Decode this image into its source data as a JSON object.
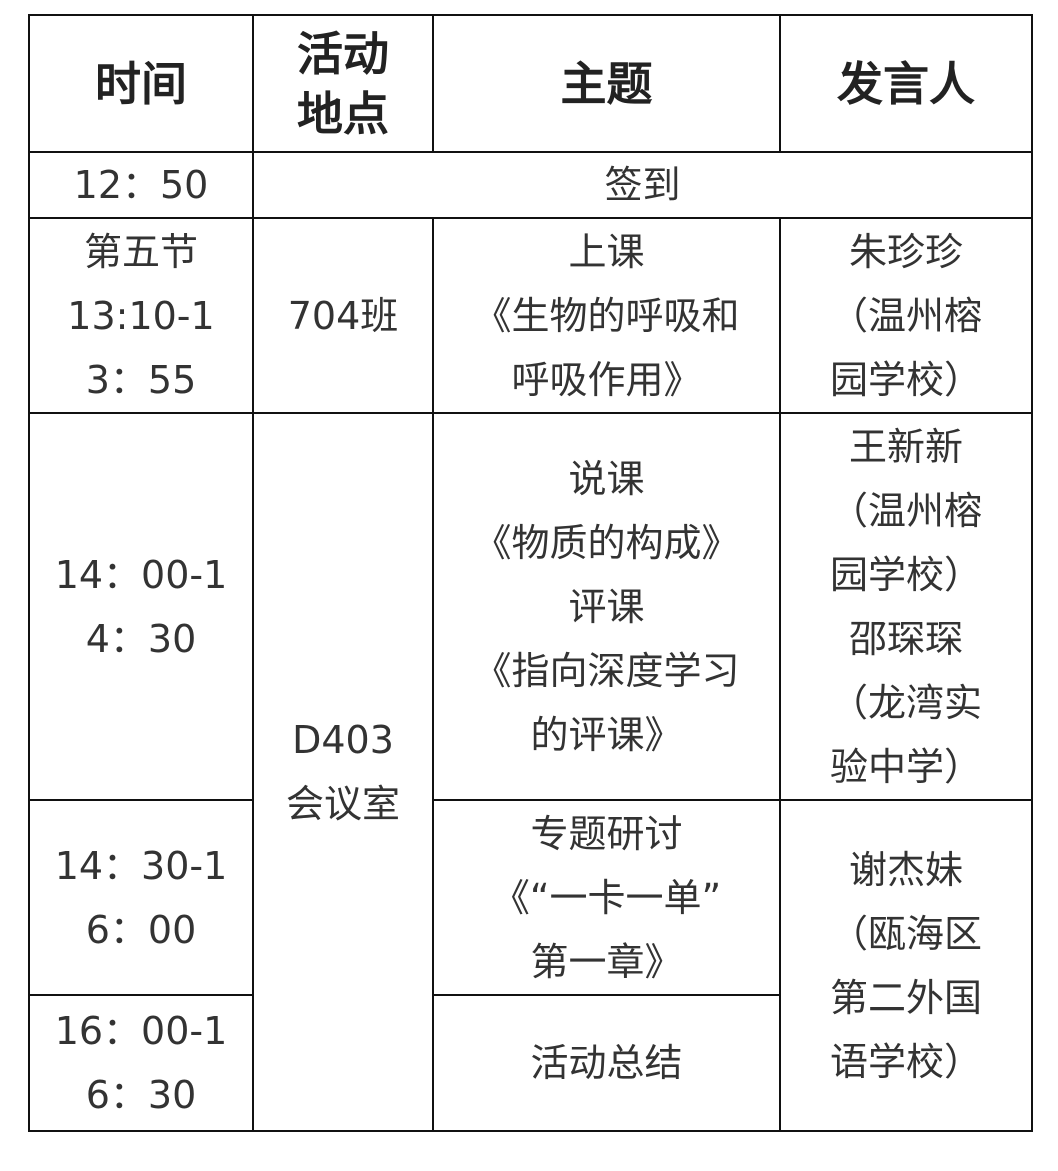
{
  "headers": {
    "time": "时间",
    "location": "活动\n地点",
    "topic": "主题",
    "speaker": "发言人"
  },
  "rows": [
    {
      "time": "12：50",
      "merged": "签到"
    },
    {
      "time": "第五节\n13:10-1\n3：55",
      "location": "704班",
      "topic": "上课\n《生物的呼吸和\n呼吸作用》",
      "speaker": "朱珍珍\n（温州榕\n园学校）"
    },
    {
      "time": "14：00-1\n4：30",
      "location": "D403\n会议室",
      "topic": "说课\n《物质的构成》\n评课\n《指向深度学习\n的评课》",
      "speaker": "王新新\n（温州榕\n园学校）\n邵琛琛\n（龙湾实\n验中学）"
    },
    {
      "time": "14：30-1\n6：00",
      "topic": "专题研讨\n《“一卡一单”\n第一章》",
      "speaker": "谢杰妹\n（瓯海区\n第二外国\n语学校）"
    },
    {
      "time": "16：00-1\n6：30",
      "topic": "活动总结"
    }
  ]
}
